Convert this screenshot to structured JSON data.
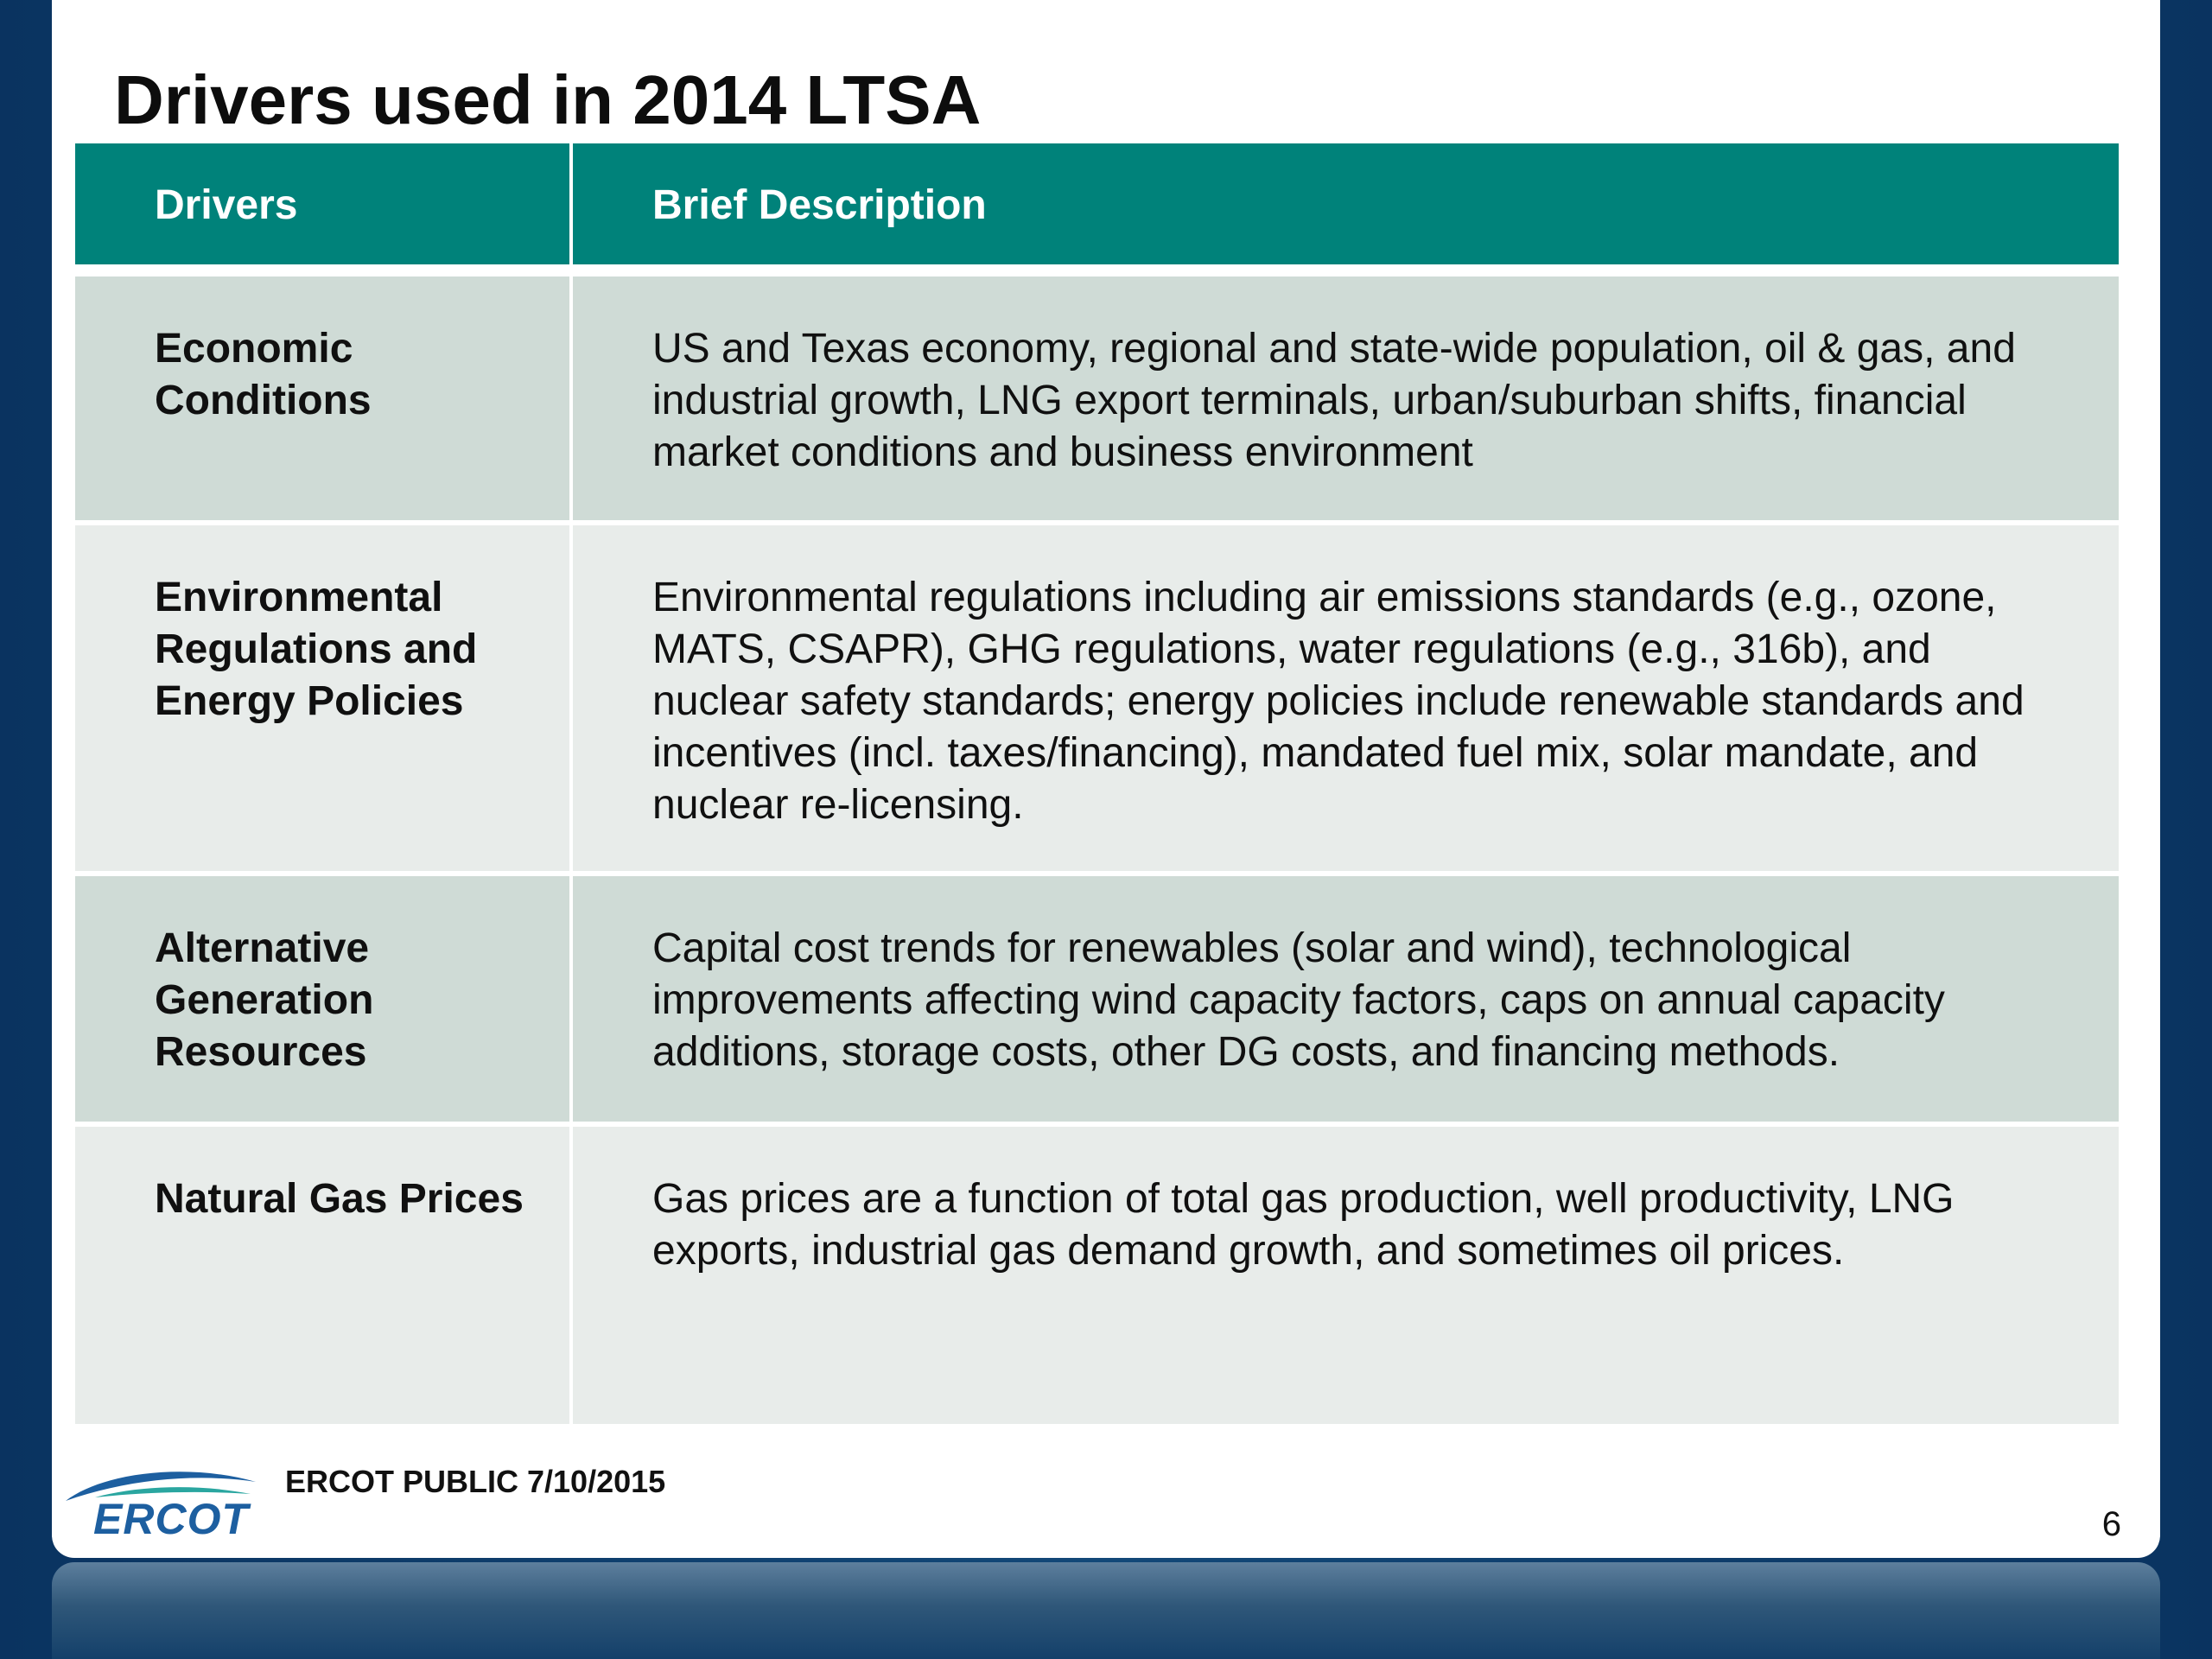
{
  "slide": {
    "title": "Drivers used in 2014 LTSA",
    "footer": "ERCOT PUBLIC 7/10/2015",
    "page_number": "6",
    "logo_text": "ERCOT"
  },
  "table": {
    "headers": [
      "Drivers",
      "Brief Description"
    ],
    "rows": [
      {
        "driver": "Economic Conditions",
        "description": "US and Texas economy, regional and state-wide population, oil & gas, and industrial growth, LNG export terminals, urban/suburban shifts, financial market conditions and business environment"
      },
      {
        "driver": "Environmental Regulations and Energy Policies",
        "description": "Environmental regulations including air emissions standards (e.g., ozone, MATS, CSAPR), GHG regulations, water regulations (e.g., 316b), and nuclear safety standards; energy policies include renewable standards and incentives (incl. taxes/financing), mandated fuel mix, solar mandate, and nuclear re-licensing."
      },
      {
        "driver": "Alternative Generation Resources",
        "description": "Capital cost trends for renewables (solar and wind), technological improvements affecting wind capacity factors, caps on annual capacity additions, storage costs, other DG costs, and financing methods."
      },
      {
        "driver": "Natural Gas Prices",
        "description": "Gas prices are a function of total gas production, well productivity, LNG exports, industrial gas demand growth, and sometimes oil prices."
      }
    ]
  },
  "colors": {
    "header_fill": "#00827a",
    "row_shaded": "#cfdbd6",
    "row_light": "#e8ecea",
    "background": "#0c3a68",
    "logo_blue": "#1d5fa0",
    "logo_teal": "#2aa6a0"
  }
}
